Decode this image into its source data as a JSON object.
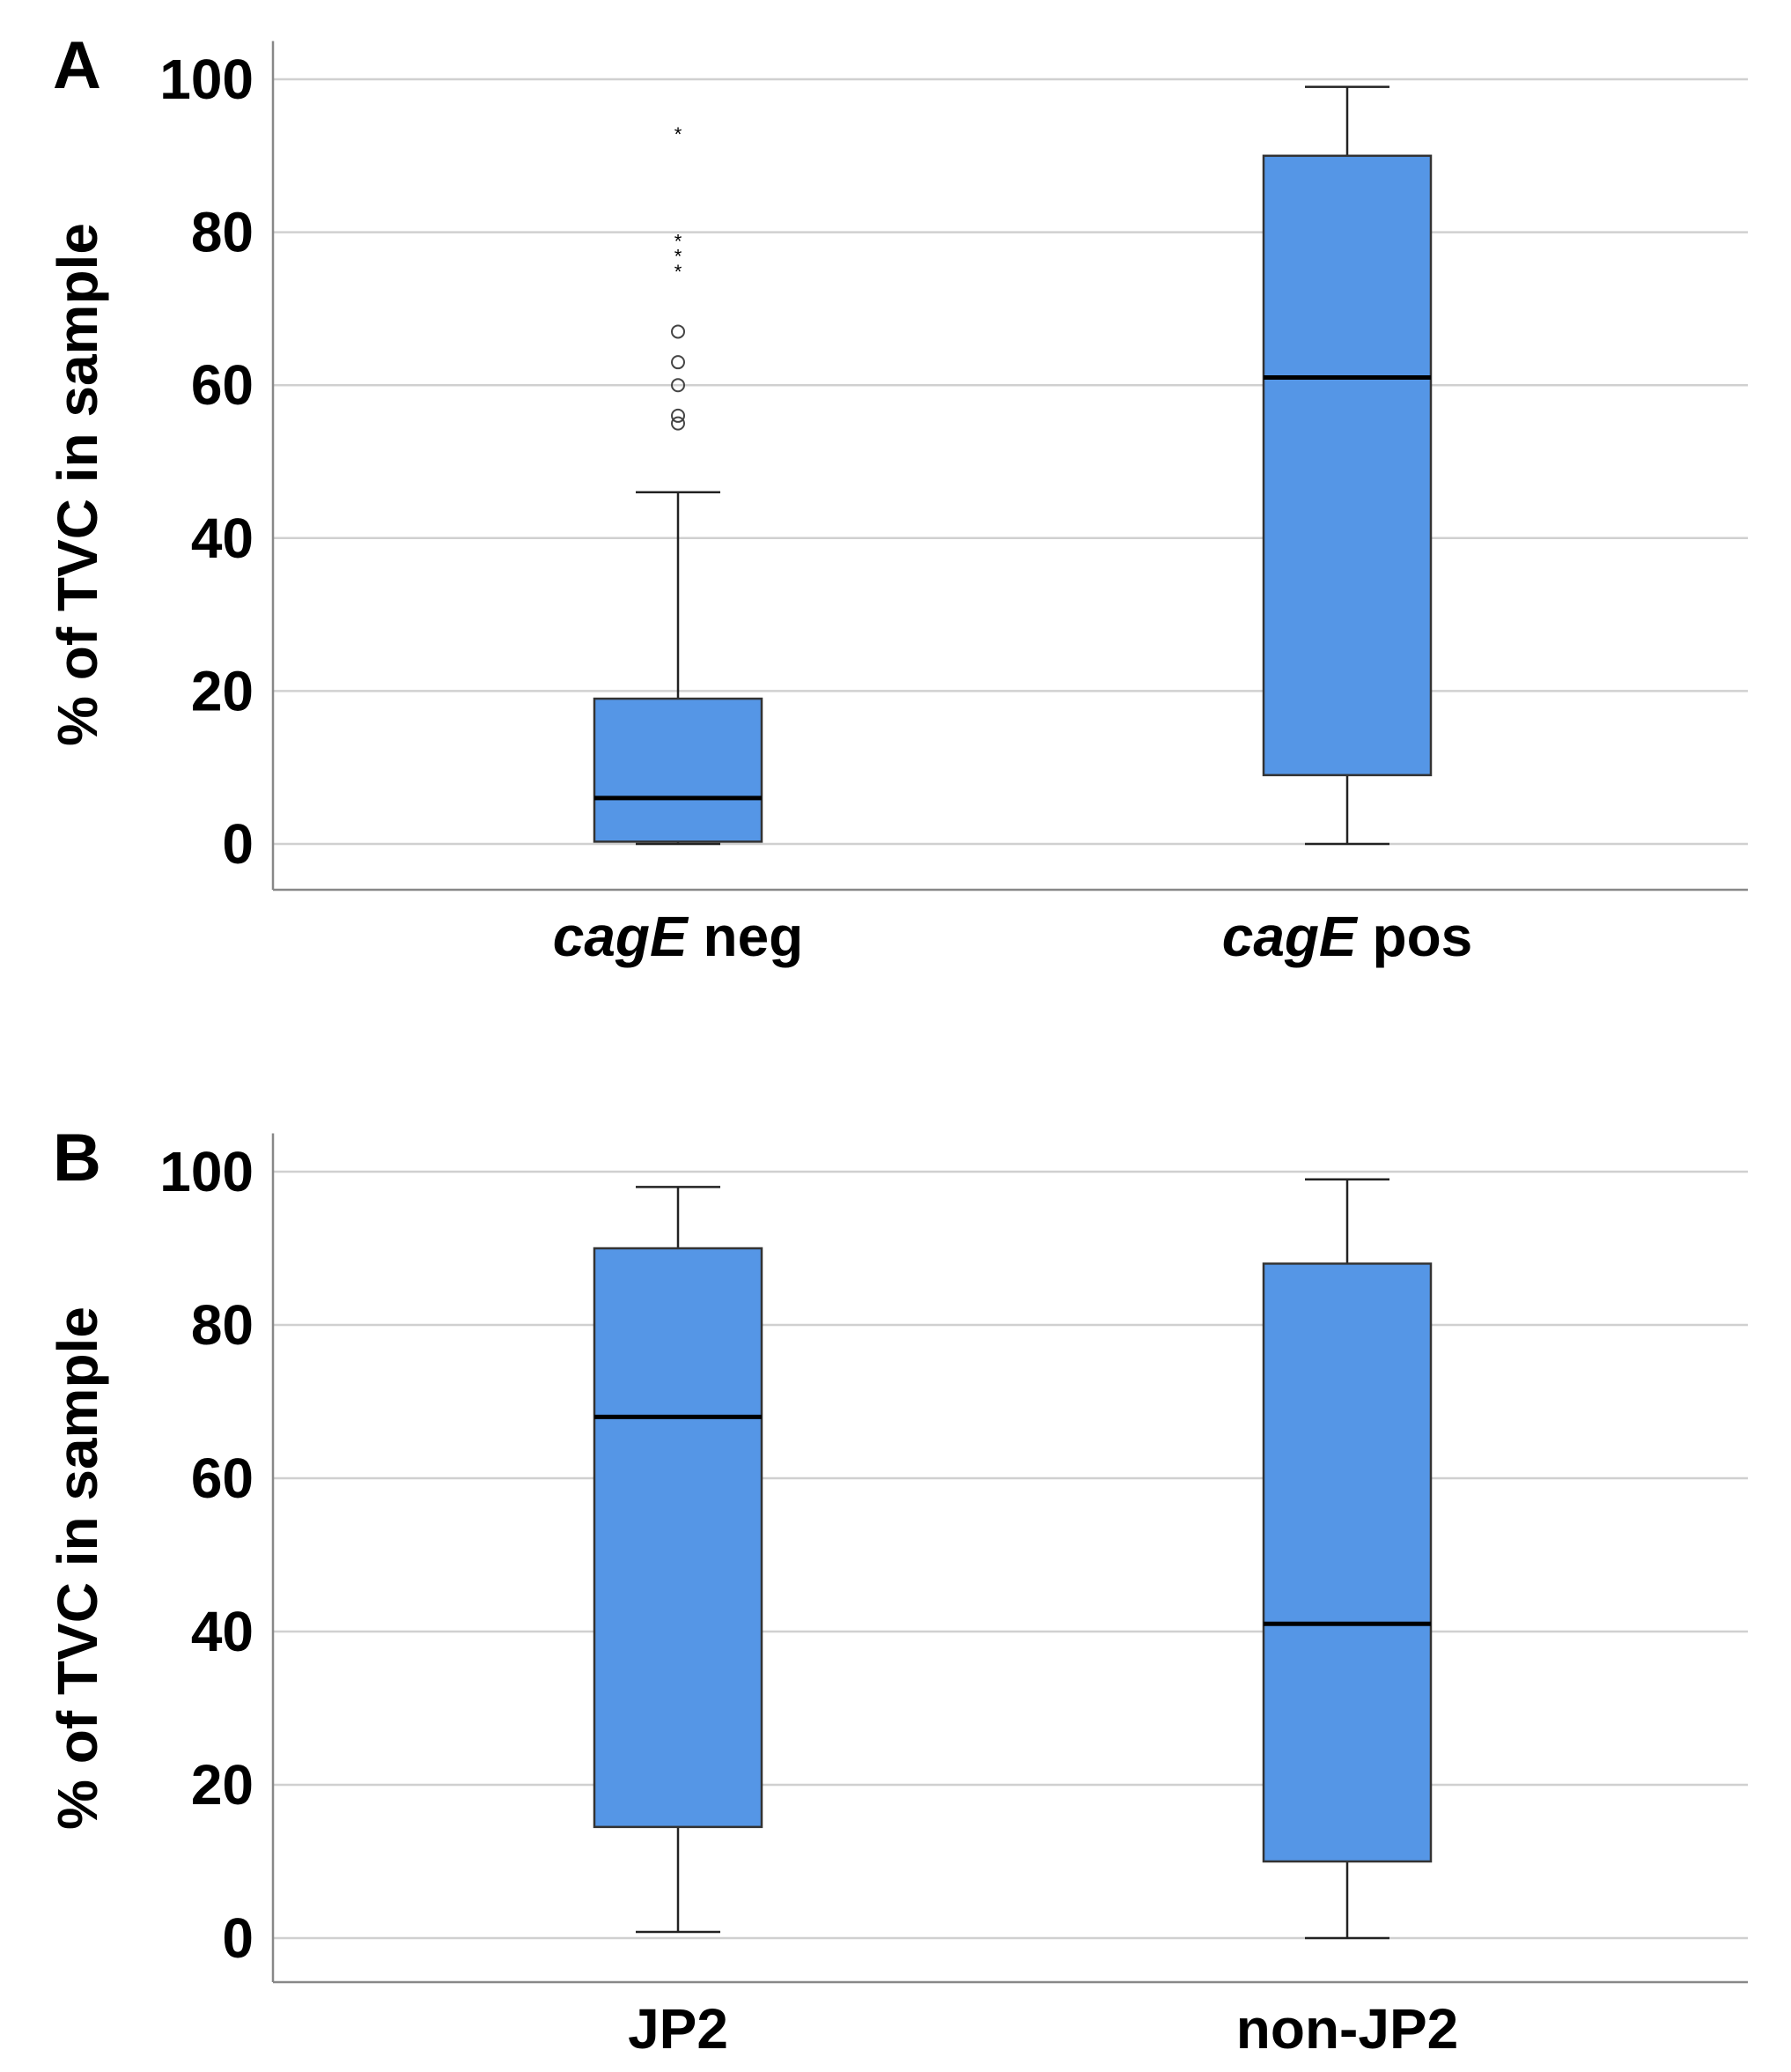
{
  "chart_data": [
    {
      "type": "boxplot",
      "panel_label": "A",
      "ylabel": "% of TVC in sample",
      "ylim": [
        -5,
        105
      ],
      "yticks": [
        0,
        20,
        40,
        60,
        80,
        100
      ],
      "ytick_labels": [
        "0",
        "20",
        "40",
        "60",
        "80",
        "100"
      ],
      "grid": true,
      "box_color": "#5596E6",
      "categories": [
        {
          "italic": "cagE",
          "rest": " neg",
          "label": "cagE neg",
          "whisker_low": 0,
          "q1": 0.3,
          "median": 6,
          "q3": 19,
          "whisker_high": 46,
          "outliers_circle": [
            55,
            56,
            60,
            63,
            67
          ],
          "outliers_extreme": [
            75,
            77,
            79,
            93
          ]
        },
        {
          "italic": "cagE",
          "rest": " pos",
          "label": "cagE pos",
          "whisker_low": 0,
          "q1": 9,
          "median": 61,
          "q3": 90,
          "whisker_high": 99,
          "outliers_circle": [],
          "outliers_extreme": []
        }
      ]
    },
    {
      "type": "boxplot",
      "panel_label": "B",
      "ylabel": "% of TVC in sample",
      "ylim": [
        -5,
        105
      ],
      "yticks": [
        0,
        20,
        40,
        60,
        80,
        100
      ],
      "ytick_labels": [
        "0",
        "20",
        "40",
        "60",
        "80",
        "100"
      ],
      "grid": true,
      "box_color": "#5596E6",
      "categories": [
        {
          "italic": "",
          "rest": "JP2",
          "label": "JP2",
          "whisker_low": 0.8,
          "q1": 14.5,
          "median": 68,
          "q3": 90,
          "whisker_high": 98,
          "outliers_circle": [],
          "outliers_extreme": []
        },
        {
          "italic": "",
          "rest": "non-JP2",
          "label": "non-JP2",
          "whisker_low": 0,
          "q1": 10,
          "median": 41,
          "q3": 88,
          "whisker_high": 99,
          "outliers_circle": [],
          "outliers_extreme": []
        }
      ]
    }
  ]
}
